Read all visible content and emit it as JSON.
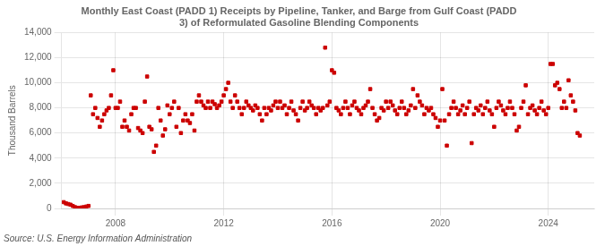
{
  "chart_data": {
    "type": "scatter",
    "title": "Monthly East Coast (PADD 1) Receipts by Pipeline, Tanker, and Barge from Gulf Coast (PADD\n3) of Reformulated Gasoline Blending Components",
    "ylabel": "Thousand Barrels",
    "source": "Source: U.S. Energy Information Administration",
    "color": "#CC0000",
    "marker": "square",
    "grid": true,
    "xlim": [
      2006.0,
      2025.7
    ],
    "xticks": [
      2008,
      2012,
      2016,
      2020,
      2024
    ],
    "ylim": [
      0,
      14000
    ],
    "yticks": [
      0,
      {
        "value": 2000,
        "label": "2,000"
      },
      {
        "value": 4000,
        "label": "4,000"
      },
      {
        "value": 6000,
        "label": "6,000"
      },
      {
        "value": 8000,
        "label": "8,000"
      },
      {
        "value": 10000,
        "label": "10,000"
      },
      {
        "value": 12000,
        "label": "12,000"
      },
      {
        "value": 14000,
        "label": "14,000"
      }
    ],
    "x": [
      2006.083,
      2006.167,
      2006.25,
      2006.333,
      2006.417,
      2006.5,
      2006.583,
      2006.667,
      2006.75,
      2006.833,
      2006.917,
      2007.0,
      2007.083,
      2007.167,
      2007.25,
      2007.333,
      2007.417,
      2007.5,
      2007.583,
      2007.667,
      2007.75,
      2007.833,
      2007.917,
      2008.0,
      2008.083,
      2008.167,
      2008.25,
      2008.333,
      2008.417,
      2008.5,
      2008.583,
      2008.667,
      2008.75,
      2008.833,
      2008.917,
      2009.0,
      2009.083,
      2009.167,
      2009.25,
      2009.333,
      2009.417,
      2009.5,
      2009.583,
      2009.667,
      2009.75,
      2009.833,
      2009.917,
      2010.0,
      2010.083,
      2010.167,
      2010.25,
      2010.333,
      2010.417,
      2010.5,
      2010.583,
      2010.667,
      2010.75,
      2010.833,
      2010.917,
      2011.0,
      2011.083,
      2011.167,
      2011.25,
      2011.333,
      2011.417,
      2011.5,
      2011.583,
      2011.667,
      2011.75,
      2011.833,
      2011.917,
      2012.0,
      2012.083,
      2012.167,
      2012.25,
      2012.333,
      2012.417,
      2012.5,
      2012.583,
      2012.667,
      2012.75,
      2012.833,
      2012.917,
      2013.0,
      2013.083,
      2013.167,
      2013.25,
      2013.333,
      2013.417,
      2013.5,
      2013.583,
      2013.667,
      2013.75,
      2013.833,
      2013.917,
      2014.0,
      2014.083,
      2014.167,
      2014.25,
      2014.333,
      2014.417,
      2014.5,
      2014.583,
      2014.667,
      2014.75,
      2014.833,
      2014.917,
      2015.0,
      2015.083,
      2015.167,
      2015.25,
      2015.333,
      2015.417,
      2015.5,
      2015.583,
      2015.667,
      2015.75,
      2015.833,
      2015.917,
      2016.0,
      2016.083,
      2016.167,
      2016.25,
      2016.333,
      2016.417,
      2016.5,
      2016.583,
      2016.667,
      2016.75,
      2016.833,
      2016.917,
      2017.0,
      2017.083,
      2017.167,
      2017.25,
      2017.333,
      2017.417,
      2017.5,
      2017.583,
      2017.667,
      2017.75,
      2017.833,
      2017.917,
      2018.0,
      2018.083,
      2018.167,
      2018.25,
      2018.333,
      2018.417,
      2018.5,
      2018.583,
      2018.667,
      2018.75,
      2018.833,
      2018.917,
      2019.0,
      2019.083,
      2019.167,
      2019.25,
      2019.333,
      2019.417,
      2019.5,
      2019.583,
      2019.667,
      2019.75,
      2019.833,
      2019.917,
      2020.0,
      2020.083,
      2020.167,
      2020.25,
      2020.333,
      2020.417,
      2020.5,
      2020.583,
      2020.667,
      2020.75,
      2020.833,
      2020.917,
      2021.0,
      2021.083,
      2021.167,
      2021.25,
      2021.333,
      2021.417,
      2021.5,
      2021.583,
      2021.667,
      2021.75,
      2021.833,
      2021.917,
      2022.0,
      2022.083,
      2022.167,
      2022.25,
      2022.333,
      2022.417,
      2022.5,
      2022.583,
      2022.667,
      2022.75,
      2022.833,
      2022.917,
      2023.0,
      2023.083,
      2023.167,
      2023.25,
      2023.333,
      2023.417,
      2023.5,
      2023.583,
      2023.667,
      2023.75,
      2023.833,
      2023.917,
      2024.0,
      2024.083,
      2024.167,
      2024.25,
      2024.333,
      2024.417,
      2024.5,
      2024.583,
      2024.667,
      2024.75,
      2024.833,
      2024.917,
      2025.0,
      2025.083,
      2025.167
    ],
    "values": [
      500,
      400,
      350,
      300,
      200,
      100,
      50,
      50,
      80,
      100,
      150,
      200,
      9000,
      7500,
      8000,
      7200,
      6500,
      7000,
      7500,
      7800,
      8000,
      9000,
      11000,
      8000,
      8000,
      8500,
      6500,
      7000,
      6500,
      6200,
      7500,
      8000,
      8000,
      6400,
      6200,
      6000,
      8500,
      10500,
      6500,
      6300,
      4500,
      5000,
      8000,
      7000,
      5800,
      6300,
      8200,
      7500,
      8000,
      8500,
      6500,
      8000,
      6000,
      7000,
      7500,
      7000,
      6800,
      7500,
      6200,
      8500,
      9000,
      8500,
      8200,
      8000,
      8500,
      8000,
      8500,
      8300,
      8000,
      8200,
      8500,
      9000,
      9500,
      10000,
      8500,
      8000,
      9000,
      8500,
      8000,
      7500,
      8000,
      8500,
      8200,
      8000,
      7800,
      8200,
      8000,
      7500,
      7000,
      8000,
      7500,
      8000,
      7800,
      8200,
      8500,
      8000,
      8500,
      8000,
      8200,
      7500,
      8000,
      8500,
      7800,
      7500,
      7000,
      8000,
      8500,
      7800,
      8000,
      8500,
      8200,
      8000,
      7500,
      8000,
      7800,
      8000,
      12800,
      8200,
      8500,
      11000,
      10800,
      8000,
      7800,
      7500,
      8000,
      8500,
      8000,
      7500,
      8200,
      8500,
      8000,
      7800,
      7500,
      8000,
      8200,
      8500,
      9500,
      8000,
      7500,
      7000,
      7200,
      8000,
      7800,
      8500,
      8000,
      8500,
      8200,
      7800,
      7500,
      8000,
      8500,
      8000,
      7500,
      7800,
      8200,
      9500,
      8000,
      9000,
      8500,
      8200,
      7500,
      8000,
      7800,
      8000,
      7500,
      7200,
      6500,
      7000,
      9500,
      7000,
      5000,
      7500,
      8000,
      8500,
      8000,
      7500,
      7800,
      8200,
      7500,
      8000,
      8500,
      5200,
      7500,
      8000,
      7800,
      8200,
      7500,
      8000,
      8500,
      7800,
      7500,
      6500,
      8000,
      8500,
      8200,
      7800,
      7500,
      8000,
      8500,
      8000,
      7500,
      6200,
      6500,
      8000,
      8500,
      9800,
      7500,
      8000,
      8200,
      7800,
      7500,
      8000,
      8500,
      7800,
      7500,
      8000,
      11500,
      11500,
      9800,
      10000,
      9500,
      8000,
      8500,
      8000,
      10200,
      9000,
      8500,
      7800,
      6000,
      5800
    ]
  }
}
